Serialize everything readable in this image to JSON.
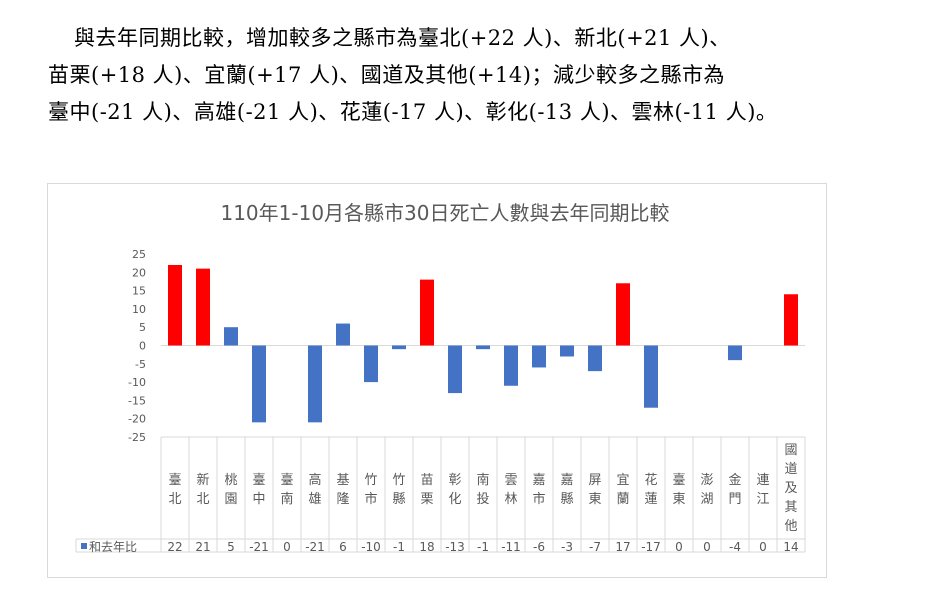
{
  "paragraph": {
    "line1": "與去年同期比較，增加較多之縣市為臺北(+22 人)、新北(+21 人)、",
    "line2": "苗栗(+18 人)、宜蘭(+17 人)、國道及其他(+14)；減少較多之縣市為",
    "line3": "臺中(-21 人)、高雄(-21 人)、花蓮(-17 人)、彰化(-13 人)、雲林(-11 人)。"
  },
  "chart_data": {
    "type": "bar",
    "title": "110年1-10月各縣市30日死亡人數與去年同期比較",
    "categories": [
      "臺北",
      "新北",
      "桃園",
      "臺中",
      "臺南",
      "高雄",
      "基隆",
      "竹市",
      "竹縣",
      "苗栗",
      "彰化",
      "南投",
      "雲林",
      "嘉市",
      "嘉縣",
      "屏東",
      "宜蘭",
      "花蓮",
      "臺東",
      "澎湖",
      "金門",
      "連江",
      "國道及其他"
    ],
    "series": [
      {
        "name": "和去年比",
        "values": [
          22,
          21,
          5,
          -21,
          0,
          -21,
          6,
          -10,
          -1,
          18,
          -13,
          -1,
          -11,
          -6,
          -3,
          -7,
          17,
          -17,
          0,
          0,
          -4,
          0,
          14
        ]
      }
    ],
    "highlighted_categories": [
      "臺北",
      "新北",
      "苗栗",
      "宜蘭",
      "國道及其他"
    ],
    "yticks": [
      25,
      20,
      15,
      10,
      5,
      0,
      -5,
      -10,
      -15,
      -20,
      -25
    ],
    "ylim": [
      -25,
      25
    ],
    "xlabel": "",
    "ylabel": "",
    "grid": false,
    "legend": "data-table",
    "colors": {
      "bar": "#4472c4",
      "highlight": "#ff0000",
      "axis": "#d9d9d9",
      "text": "#595959"
    }
  }
}
